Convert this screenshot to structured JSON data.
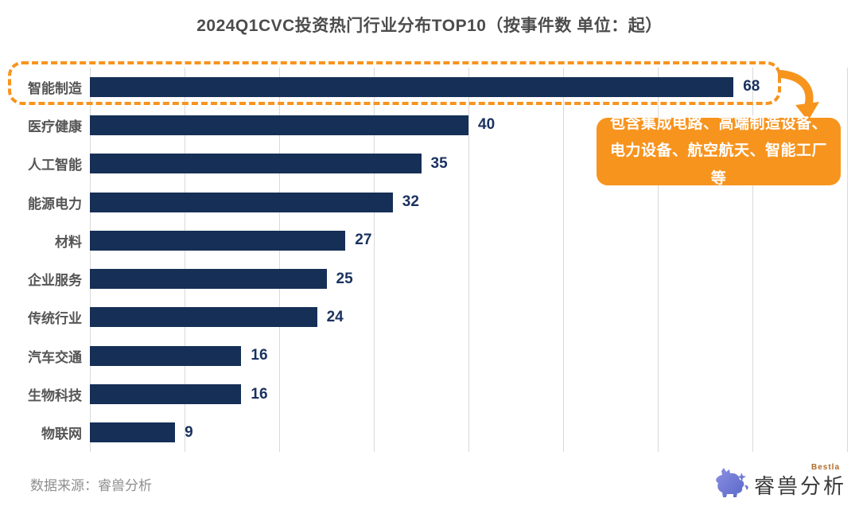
{
  "title": "2024Q1CVC投资热门行业分布TOP10（按事件数 单位：起）",
  "chart_data": {
    "type": "bar",
    "orientation": "horizontal",
    "title": "2024Q1CVC投资热门行业分布TOP10（按事件数 单位：起）",
    "categories": [
      "智能制造",
      "医疗健康",
      "人工智能",
      "能源电力",
      "材料",
      "企业服务",
      "传统行业",
      "汽车交通",
      "生物科技",
      "物联网"
    ],
    "values": [
      68,
      40,
      35,
      32,
      27,
      25,
      24,
      16,
      16,
      9
    ],
    "xlim": [
      0,
      80
    ],
    "grid_step": 10,
    "grid": true,
    "legend": "none",
    "bar_color": "#152f56",
    "value_label_color": "#1a3260"
  },
  "highlight": {
    "category": "智能制造",
    "callout_text": "包含集成电路、高端制造设备、电力设备、航空航天、智能工厂等",
    "accent_color": "#f7941e"
  },
  "footer": {
    "source_label": "数据来源：睿兽分析",
    "logo_text": "睿兽分析",
    "logo_sub": "Bestla"
  },
  "icons": {
    "arrow": "curved-down-arrow-icon",
    "logo": "bestla-beast-logo-icon"
  }
}
